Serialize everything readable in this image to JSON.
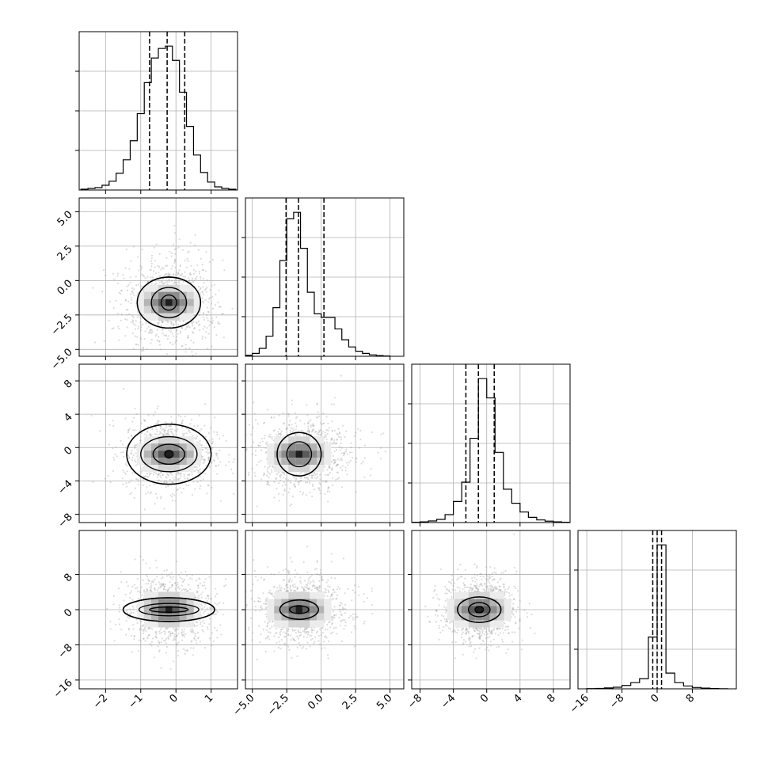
{
  "chart_data": {
    "type": "corner",
    "grid": true,
    "legend": "none",
    "parameters": [
      {
        "xlim": [
          -2.75,
          1.75
        ],
        "ticks": [
          -2,
          -1,
          0,
          1
        ],
        "tick_labels": [
          "−2",
          "−1",
          "0",
          "1"
        ],
        "quantiles": [
          -0.75,
          -0.25,
          0.25
        ]
      },
      {
        "xlim": [
          -5.5,
          6.0
        ],
        "ticks": [
          -5.0,
          -2.5,
          0.0,
          2.5,
          5.0
        ],
        "tick_labels": [
          "−5.0",
          "−2.5",
          "0.0",
          "2.5",
          "5.0"
        ],
        "quantiles": [
          -2.55,
          -1.65,
          0.2
        ]
      },
      {
        "xlim": [
          -9.0,
          10.0
        ],
        "ticks": [
          -8,
          -4,
          0,
          4,
          8
        ],
        "tick_labels": [
          "−8",
          "−4",
          "0",
          "4",
          "8"
        ],
        "quantiles": [
          -2.5,
          -1.0,
          0.9
        ]
      },
      {
        "xlim": [
          -18.0,
          18.0
        ],
        "ticks": [
          -16,
          -8,
          0,
          8
        ],
        "tick_labels": [
          "−16",
          "−8",
          "0",
          "8"
        ],
        "quantiles": [
          -1.0,
          0.0,
          1.0
        ]
      }
    ],
    "histograms": [
      {
        "bin_centers": [
          -2.6,
          -2.4,
          -2.2,
          -2.0,
          -1.8,
          -1.6,
          -1.4,
          -1.2,
          -1.0,
          -0.8,
          -0.6,
          -0.4,
          -0.2,
          0.0,
          0.2,
          0.4,
          0.6,
          0.8,
          1.0,
          1.2,
          1.4,
          1.6
        ],
        "values": [
          1,
          2,
          3,
          6,
          11,
          21,
          38,
          62,
          96,
          135,
          166,
          178,
          181,
          163,
          123,
          80,
          44,
          22,
          10,
          4,
          2,
          1
        ]
      },
      {
        "bin_centers": [
          -5.25,
          -4.75,
          -4.25,
          -3.75,
          -3.25,
          -2.75,
          -2.25,
          -1.75,
          -1.25,
          -0.75,
          -0.25,
          0.25,
          0.75,
          1.25,
          1.75,
          2.25,
          2.75,
          3.25,
          3.75,
          4.25,
          4.75
        ],
        "values": [
          3,
          8,
          22,
          56,
          135,
          266,
          382,
          400,
          300,
          178,
          118,
          108,
          108,
          76,
          46,
          26,
          14,
          8,
          4,
          2,
          1
        ]
      },
      {
        "bin_centers": [
          -8.5,
          -7.5,
          -6.5,
          -5.5,
          -4.5,
          -3.5,
          -2.5,
          -1.5,
          -0.5,
          0.5,
          1.5,
          2.5,
          3.5,
          4.5,
          5.5,
          6.5,
          7.5,
          8.5,
          9.5
        ],
        "values": [
          2,
          4,
          9,
          18,
          45,
          120,
          230,
          480,
          820,
          710,
          400,
          190,
          110,
          60,
          30,
          15,
          8,
          4,
          2
        ]
      },
      {
        "bin_centers": [
          -15,
          -13,
          -11,
          -9,
          -7,
          -5,
          -3,
          -1,
          1,
          3,
          5,
          7,
          9,
          11,
          13,
          15
        ],
        "values": [
          2,
          4,
          8,
          14,
          30,
          55,
          90,
          460,
          1280,
          140,
          55,
          25,
          12,
          6,
          3,
          1
        ]
      }
    ],
    "density_panels": [
      {
        "pair": [
          0,
          1
        ],
        "center": [
          -0.2,
          -1.6
        ],
        "spread": [
          0.65,
          1.6
        ],
        "contours": [
          [
            0.22,
            0.55
          ],
          [
            0.5,
            1.1
          ],
          [
            0.9,
            1.85
          ]
        ],
        "tail_shift": [
          0.0,
          1.6
        ]
      },
      {
        "pair": [
          0,
          2
        ],
        "center": [
          -0.2,
          -0.8
        ],
        "spread": [
          0.65,
          2.2
        ],
        "contours": [
          [
            0.12,
            0.45
          ],
          [
            0.45,
            1.2
          ],
          [
            0.8,
            2.1
          ],
          [
            1.2,
            3.6
          ]
        ]
      },
      {
        "pair": [
          1,
          2
        ],
        "center": [
          -1.6,
          -0.8
        ],
        "spread": [
          1.6,
          2.2
        ],
        "contours": [
          [
            0.9,
            1.5
          ],
          [
            1.6,
            2.6
          ]
        ],
        "tail_shift": [
          2.8,
          1.5
        ]
      },
      {
        "pair": [
          0,
          3
        ],
        "center": [
          -0.2,
          0.0
        ],
        "spread": [
          0.65,
          4.0
        ],
        "contours": [
          [
            0.55,
            0.6
          ],
          [
            0.85,
            1.4
          ],
          [
            1.3,
            2.7
          ]
        ]
      },
      {
        "pair": [
          1,
          3
        ],
        "center": [
          -1.6,
          0.0
        ],
        "spread": [
          1.6,
          4.0
        ],
        "contours": [
          [
            0.7,
            0.9
          ],
          [
            1.4,
            2.2
          ]
        ],
        "tail_shift": [
          2.3,
          -3.0
        ]
      },
      {
        "pair": [
          2,
          3
        ],
        "center": [
          -0.9,
          0.0
        ],
        "spread": [
          2.2,
          4.0
        ],
        "contours": [
          [
            0.5,
            0.7
          ],
          [
            1.3,
            1.6
          ],
          [
            2.6,
            2.9
          ]
        ]
      }
    ]
  }
}
